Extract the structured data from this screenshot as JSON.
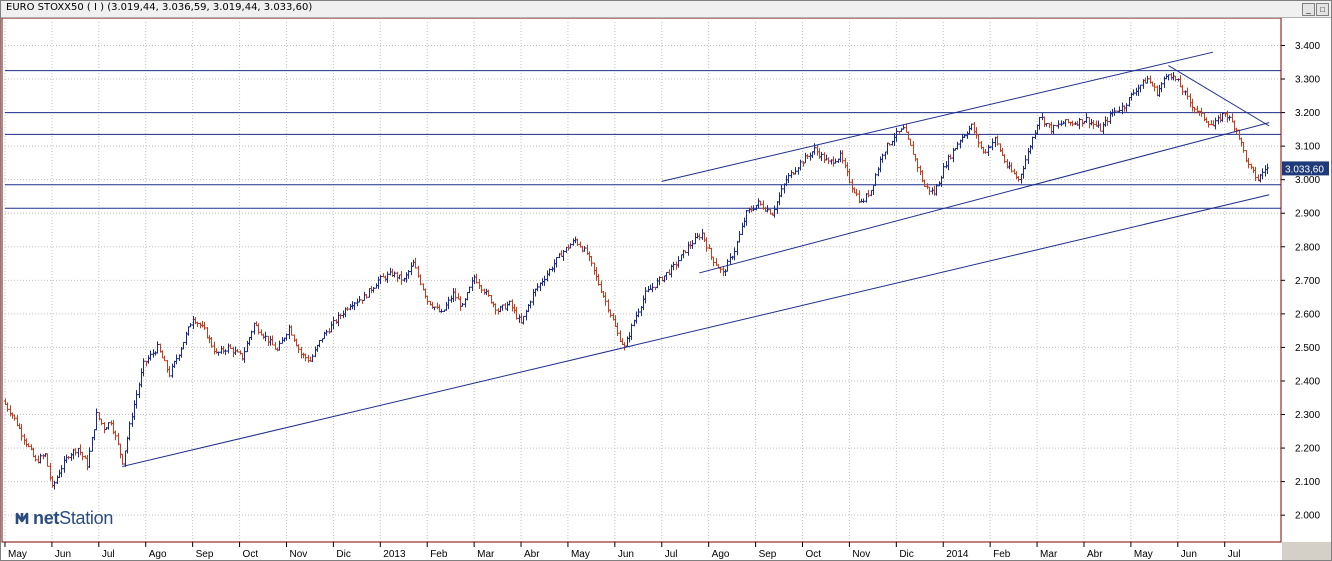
{
  "window": {
    "title": "EURO STOXX50 ( I ) (3.019,44, 3.036,59, 3.019,44, 3.033,60)",
    "minimize_label": "_",
    "maximize_label": "□"
  },
  "logo": {
    "text_bold": "net",
    "text_regular": "Station"
  },
  "colors": {
    "grid": "#c0c0c0",
    "up_bar": "#1a2a8a",
    "down_bar": "#c83c1e",
    "trendline": "#1e2e8c",
    "horizontal": "#1e2e8c",
    "price_box": "#1e3a78",
    "border": "#800000"
  },
  "chart_data": {
    "type": "line",
    "title": "EURO STOXX50 ( I )",
    "ohlc_last": {
      "open": "3.019,44",
      "high": "3.036,59",
      "low": "3.019,44",
      "close": "3.033,60"
    },
    "last_price_label": "3.033,60",
    "last_price": 3033.6,
    "ylim": [
      1920,
      3470
    ],
    "y_ticks": [
      {
        "value": 2000,
        "label": "2.000"
      },
      {
        "value": 2100,
        "label": "2.100"
      },
      {
        "value": 2200,
        "label": "2.200"
      },
      {
        "value": 2300,
        "label": "2.300"
      },
      {
        "value": 2400,
        "label": "2.400"
      },
      {
        "value": 2500,
        "label": "2.500"
      },
      {
        "value": 2600,
        "label": "2.600"
      },
      {
        "value": 2700,
        "label": "2.700"
      },
      {
        "value": 2800,
        "label": "2.800"
      },
      {
        "value": 2900,
        "label": "2.900"
      },
      {
        "value": 3000,
        "label": "3.000"
      },
      {
        "value": 3100,
        "label": "3.100"
      },
      {
        "value": 3200,
        "label": "3.200"
      },
      {
        "value": 3300,
        "label": "3.300"
      },
      {
        "value": 3400,
        "label": "3.400"
      }
    ],
    "x_ticks": [
      "May",
      "Jun",
      "Jul",
      "Ago",
      "Sep",
      "Oct",
      "Nov",
      "Dic",
      "2013",
      "Feb",
      "Mar",
      "Abr",
      "May",
      "Jun",
      "Jul",
      "Ago",
      "Sep",
      "Oct",
      "Nov",
      "Dic",
      "2014",
      "Feb",
      "Mar",
      "Abr",
      "May",
      "Jun",
      "Jul"
    ],
    "x_tick_months": [
      0,
      1,
      2,
      3,
      4,
      5,
      6,
      7,
      8,
      9,
      10,
      11,
      12,
      13,
      14,
      15,
      16,
      17,
      18,
      19,
      20,
      21,
      22,
      23,
      24,
      25,
      26
    ],
    "x_range_months": [
      0,
      27.2
    ],
    "grid": true,
    "price_path": [
      [
        0.0,
        2340
      ],
      [
        0.2,
        2300
      ],
      [
        0.45,
        2230
      ],
      [
        0.7,
        2160
      ],
      [
        0.9,
        2180
      ],
      [
        1.05,
        2080
      ],
      [
        1.2,
        2130
      ],
      [
        1.4,
        2180
      ],
      [
        1.6,
        2200
      ],
      [
        1.8,
        2150
      ],
      [
        2.0,
        2300
      ],
      [
        2.15,
        2260
      ],
      [
        2.3,
        2280
      ],
      [
        2.55,
        2160
      ],
      [
        2.75,
        2300
      ],
      [
        3.0,
        2450
      ],
      [
        3.3,
        2500
      ],
      [
        3.55,
        2420
      ],
      [
        3.8,
        2500
      ],
      [
        4.05,
        2590
      ],
      [
        4.3,
        2550
      ],
      [
        4.55,
        2480
      ],
      [
        4.8,
        2500
      ],
      [
        5.1,
        2470
      ],
      [
        5.35,
        2570
      ],
      [
        5.6,
        2530
      ],
      [
        5.85,
        2490
      ],
      [
        6.1,
        2560
      ],
      [
        6.35,
        2480
      ],
      [
        6.55,
        2460
      ],
      [
        6.8,
        2530
      ],
      [
        7.1,
        2580
      ],
      [
        7.4,
        2630
      ],
      [
        7.7,
        2650
      ],
      [
        8.0,
        2700
      ],
      [
        8.3,
        2720
      ],
      [
        8.55,
        2700
      ],
      [
        8.75,
        2750
      ],
      [
        9.05,
        2640
      ],
      [
        9.35,
        2600
      ],
      [
        9.6,
        2660
      ],
      [
        9.8,
        2620
      ],
      [
        10.05,
        2710
      ],
      [
        10.3,
        2660
      ],
      [
        10.55,
        2610
      ],
      [
        10.8,
        2630
      ],
      [
        11.05,
        2570
      ],
      [
        11.3,
        2660
      ],
      [
        11.6,
        2720
      ],
      [
        11.9,
        2780
      ],
      [
        12.2,
        2820
      ],
      [
        12.45,
        2780
      ],
      [
        12.7,
        2690
      ],
      [
        12.9,
        2620
      ],
      [
        13.1,
        2540
      ],
      [
        13.25,
        2500
      ],
      [
        13.45,
        2580
      ],
      [
        13.7,
        2660
      ],
      [
        14.0,
        2700
      ],
      [
        14.3,
        2740
      ],
      [
        14.6,
        2800
      ],
      [
        14.9,
        2840
      ],
      [
        15.1,
        2770
      ],
      [
        15.35,
        2720
      ],
      [
        15.6,
        2790
      ],
      [
        15.85,
        2900
      ],
      [
        16.1,
        2930
      ],
      [
        16.4,
        2900
      ],
      [
        16.7,
        3000
      ],
      [
        17.0,
        3050
      ],
      [
        17.3,
        3090
      ],
      [
        17.6,
        3050
      ],
      [
        17.85,
        3070
      ],
      [
        18.1,
        2980
      ],
      [
        18.3,
        2930
      ],
      [
        18.5,
        2970
      ],
      [
        18.75,
        3080
      ],
      [
        19.0,
        3130
      ],
      [
        19.2,
        3150
      ],
      [
        19.4,
        3080
      ],
      [
        19.65,
        2980
      ],
      [
        19.85,
        2960
      ],
      [
        20.1,
        3050
      ],
      [
        20.4,
        3120
      ],
      [
        20.65,
        3160
      ],
      [
        20.9,
        3080
      ],
      [
        21.15,
        3120
      ],
      [
        21.4,
        3040
      ],
      [
        21.65,
        3000
      ],
      [
        21.85,
        3080
      ],
      [
        22.1,
        3190
      ],
      [
        22.35,
        3150
      ],
      [
        22.6,
        3170
      ],
      [
        22.85,
        3170
      ],
      [
        23.1,
        3180
      ],
      [
        23.4,
        3150
      ],
      [
        23.65,
        3200
      ],
      [
        23.9,
        3220
      ],
      [
        24.15,
        3270
      ],
      [
        24.4,
        3300
      ],
      [
        24.6,
        3260
      ],
      [
        24.85,
        3320
      ],
      [
        25.05,
        3290
      ],
      [
        25.3,
        3230
      ],
      [
        25.55,
        3190
      ],
      [
        25.8,
        3160
      ],
      [
        26.05,
        3200
      ],
      [
        26.3,
        3150
      ],
      [
        26.55,
        3040
      ],
      [
        26.75,
        3000
      ],
      [
        26.9,
        3033
      ]
    ],
    "trendlines": [
      {
        "from": [
          2.5,
          2145
        ],
        "to": [
          26.95,
          2955
        ]
      },
      {
        "from": [
          14.8,
          2722
        ],
        "to": [
          26.95,
          3170
        ]
      },
      {
        "from": [
          14.0,
          2995
        ],
        "to": [
          25.75,
          3380
        ]
      },
      {
        "from": [
          24.8,
          3340
        ],
        "to": [
          26.95,
          3160
        ]
      }
    ],
    "horizontal_levels": [
      3325,
      3200,
      3135,
      2985,
      2915
    ]
  }
}
